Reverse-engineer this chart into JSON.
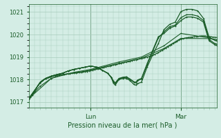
{
  "title": "Pression niveau de la mer( hPa )",
  "bg_color": "#d4ede5",
  "grid_color": "#a8ccbc",
  "line_color": "#1a5c28",
  "ylim": [
    1016.75,
    1021.35
  ],
  "yticks": [
    1017,
    1018,
    1019,
    1020,
    1021
  ],
  "xlim": [
    0,
    100
  ],
  "x_lun": 33,
  "x_mar": 81,
  "xlabel_lun": "Lun",
  "xlabel_mar": "Mar",
  "series": [
    {
      "x": [
        0,
        1,
        2,
        3,
        4,
        5,
        6,
        7,
        8,
        9,
        10,
        11,
        12,
        13,
        14,
        15,
        16,
        17,
        18,
        19,
        20,
        21,
        22,
        23,
        24,
        25,
        26,
        27,
        28,
        29,
        30,
        31,
        32,
        33,
        34,
        35,
        36,
        37,
        38,
        39,
        40,
        41,
        42,
        43,
        44,
        45,
        46,
        47,
        48,
        49,
        50,
        51,
        52,
        53,
        54,
        55,
        56,
        57,
        58,
        59,
        60,
        61,
        62,
        63,
        64,
        65,
        66,
        67,
        68,
        69,
        70,
        71,
        72,
        73,
        74,
        75,
        76,
        77,
        78,
        79,
        80,
        81,
        82,
        83,
        84,
        85,
        86,
        87,
        88,
        89,
        90,
        91,
        92,
        93,
        94,
        95,
        96,
        97,
        98,
        99,
        100
      ],
      "y": [
        1017.15,
        1017.2,
        1017.3,
        1017.45,
        1017.6,
        1017.75,
        1017.88,
        1017.95,
        1018.0,
        1018.05,
        1018.08,
        1018.1,
        1018.12,
        1018.15,
        1018.17,
        1018.18,
        1018.2,
        1018.21,
        1018.22,
        1018.23,
        1018.24,
        1018.25,
        1018.26,
        1018.27,
        1018.28,
        1018.29,
        1018.3,
        1018.31,
        1018.32,
        1018.33,
        1018.35,
        1018.36,
        1018.38,
        1018.4,
        1018.42,
        1018.44,
        1018.46,
        1018.48,
        1018.5,
        1018.52,
        1018.54,
        1018.56,
        1018.58,
        1018.6,
        1018.62,
        1018.64,
        1018.66,
        1018.68,
        1018.7,
        1018.72,
        1018.74,
        1018.76,
        1018.78,
        1018.8,
        1018.82,
        1018.84,
        1018.86,
        1018.88,
        1018.9,
        1018.92,
        1018.94,
        1018.96,
        1018.98,
        1019.0,
        1019.02,
        1019.05,
        1019.08,
        1019.12,
        1019.16,
        1019.2,
        1019.25,
        1019.3,
        1019.35,
        1019.4,
        1019.45,
        1019.5,
        1019.55,
        1019.6,
        1019.65,
        1019.7,
        1019.75,
        1019.8,
        1019.82,
        1019.84,
        1019.86,
        1019.87,
        1019.88,
        1019.89,
        1019.9,
        1019.91,
        1019.92,
        1019.93,
        1019.94,
        1019.94,
        1019.93,
        1019.92,
        1019.91,
        1019.9,
        1019.89,
        1019.88,
        1019.87
      ]
    },
    {
      "x": [
        0,
        6,
        12,
        18,
        24,
        30,
        33,
        48,
        60,
        72,
        81,
        96,
        100
      ],
      "y": [
        1017.15,
        1017.7,
        1018.05,
        1018.22,
        1018.3,
        1018.37,
        1018.42,
        1018.72,
        1018.95,
        1019.38,
        1019.83,
        1019.82,
        1019.78
      ]
    },
    {
      "x": [
        0,
        12,
        24,
        33,
        48,
        60,
        72,
        81,
        96,
        100
      ],
      "y": [
        1017.15,
        1018.05,
        1018.32,
        1018.45,
        1018.78,
        1019.0,
        1019.5,
        1020.05,
        1019.85,
        1019.72
      ]
    },
    {
      "x": [
        0,
        3,
        6,
        9,
        12,
        15,
        18,
        21,
        24,
        27,
        30,
        33,
        36,
        39,
        42,
        44,
        45,
        46,
        48,
        50,
        52,
        54,
        56,
        57,
        58,
        60,
        63,
        66,
        69,
        72,
        75,
        78,
        81,
        84,
        87,
        90,
        93,
        96,
        99,
        100
      ],
      "y": [
        1017.15,
        1017.5,
        1017.85,
        1018.05,
        1018.15,
        1018.22,
        1018.28,
        1018.38,
        1018.45,
        1018.5,
        1018.55,
        1018.6,
        1018.55,
        1018.42,
        1018.28,
        1018.08,
        1017.85,
        1017.75,
        1018.0,
        1018.05,
        1018.05,
        1017.95,
        1017.78,
        1017.75,
        1017.82,
        1017.88,
        1018.55,
        1019.1,
        1019.6,
        1020.22,
        1020.45,
        1020.55,
        1021.02,
        1021.12,
        1021.12,
        1021.05,
        1020.72,
        1019.88,
        1019.75,
        1019.72
      ]
    },
    {
      "x": [
        0,
        3,
        6,
        9,
        12,
        15,
        18,
        21,
        24,
        27,
        30,
        33,
        36,
        39,
        42,
        44,
        45,
        46,
        48,
        50,
        52,
        54,
        56,
        57,
        58,
        60,
        63,
        66,
        69,
        72,
        75,
        78,
        81,
        84,
        87,
        90,
        93,
        96,
        99,
        100
      ],
      "y": [
        1017.15,
        1017.5,
        1017.85,
        1018.05,
        1018.15,
        1018.22,
        1018.28,
        1018.38,
        1018.45,
        1018.5,
        1018.55,
        1018.6,
        1018.55,
        1018.42,
        1018.28,
        1018.1,
        1017.9,
        1017.82,
        1018.02,
        1018.08,
        1018.1,
        1018.0,
        1017.88,
        1017.85,
        1017.95,
        1018.02,
        1018.65,
        1019.25,
        1019.85,
        1020.12,
        1020.35,
        1020.42,
        1020.75,
        1020.88,
        1020.88,
        1020.82,
        1020.62,
        1019.78,
        1019.6,
        1019.58
      ]
    },
    {
      "x": [
        0,
        3,
        6,
        9,
        12,
        15,
        18,
        21,
        24,
        27,
        30,
        33,
        36,
        39,
        42,
        44,
        45,
        46,
        48,
        50,
        52,
        54,
        56,
        57,
        58,
        60,
        63,
        66,
        69,
        72,
        75,
        78,
        81,
        84,
        87,
        90,
        93,
        96,
        99,
        100
      ],
      "y": [
        1017.15,
        1017.5,
        1017.85,
        1018.05,
        1018.15,
        1018.22,
        1018.28,
        1018.38,
        1018.45,
        1018.5,
        1018.55,
        1018.6,
        1018.55,
        1018.42,
        1018.28,
        1018.1,
        1017.95,
        1017.85,
        1018.05,
        1018.1,
        1018.12,
        1018.02,
        1017.9,
        1017.88,
        1017.98,
        1018.05,
        1018.7,
        1019.3,
        1019.9,
        1020.05,
        1020.28,
        1020.38,
        1020.62,
        1020.78,
        1020.78,
        1020.72,
        1020.55,
        1019.72,
        1019.55,
        1019.52
      ]
    }
  ]
}
